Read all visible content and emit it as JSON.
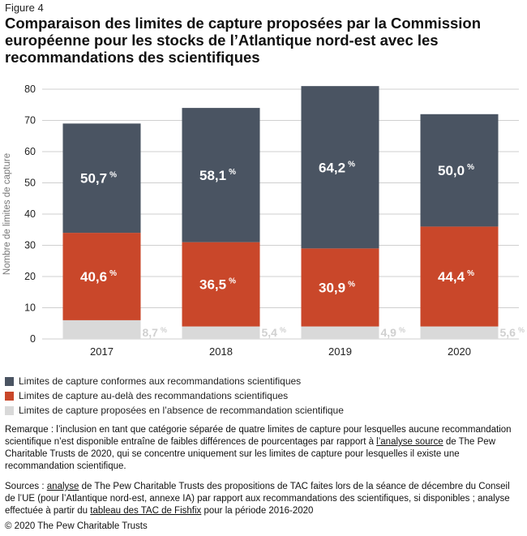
{
  "figure_label": "Figure 4",
  "title": "Comparaison des limites de capture proposées par la Commission européenne pour les stocks de l’Atlantique nord-est avec les recommandations des scientifiques",
  "chart_data": {
    "type": "bar",
    "stacked": true,
    "categories": [
      "2017",
      "2018",
      "2019",
      "2020"
    ],
    "ylabel": "Nombre de limites de capture",
    "ylim": [
      0,
      80
    ],
    "yticks": [
      0,
      10,
      20,
      30,
      40,
      50,
      60,
      70,
      80
    ],
    "grid": true,
    "series": [
      {
        "name": "Limites de capture proposées en l’absence de recommandation scientifique",
        "color": "#d9d9d9",
        "values": [
          6,
          4,
          4,
          4
        ],
        "labels": [
          "8,7",
          "5,4",
          "4,9",
          "5,6"
        ]
      },
      {
        "name": "Limites de capture au-delà des recommandations scientifiques",
        "color": "#c9472a",
        "values": [
          28,
          27,
          25,
          32
        ],
        "labels": [
          "40,6",
          "36,5",
          "30,9",
          "44,4"
        ]
      },
      {
        "name": "Limites de capture conformes aux recommandations scientifiques",
        "color": "#4a5462",
        "values": [
          35,
          43,
          52,
          36
        ],
        "labels": [
          "50,7",
          "58,1",
          "64,2",
          "50,0"
        ]
      }
    ],
    "label_unit": "%"
  },
  "legend": [
    {
      "label": "Limites de capture conformes aux recommandations scientifiques",
      "color": "#4a5462"
    },
    {
      "label": "Limites de capture au-delà des recommandations scientifiques",
      "color": "#c9472a"
    },
    {
      "label": "Limites de capture proposées en l’absence de recommandation scientifique",
      "color": "#d9d9d9"
    }
  ],
  "note": {
    "part1": "Remarque : l’inclusion en tant que catégorie séparée de quatre limites de capture pour lesquelles aucune recommandation scientifique n’est disponible entraîne de faibles différences de pourcentages par rapport à ",
    "link": "l’analyse source",
    "part2": " de The Pew Charitable Trusts de 2020, qui se concentre uniquement sur les limites de capture pour lesquelles il existe une recommandation scientifique."
  },
  "sources": {
    "part1": "Sources : ",
    "link1": "analyse",
    "part2": " de The Pew Charitable Trusts des propositions de TAC faites lors de la séance de décembre du Conseil de l’UE (pour l’Atlantique nord-est, annexe IA) par rapport aux recommandations des scientifiques, si disponibles ; analyse effectuée à partir du ",
    "link2": "tableau des TAC de Fishfix",
    "part3": " pour la période 2016-2020"
  },
  "copyright": "© 2020 The Pew Charitable Trusts"
}
